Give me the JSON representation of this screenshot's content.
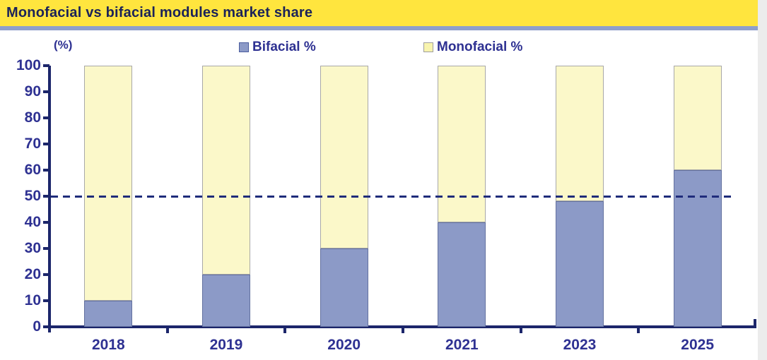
{
  "title": "Monofacial vs bifacial modules market share",
  "unit_label": "(%)",
  "legend": {
    "items": [
      {
        "label": "Bifacial %",
        "fill": "#8c9ac7",
        "border": "#4a5c9e"
      },
      {
        "label": "Monofacial %",
        "fill": "#f8f4ae",
        "border": "#9e9e9e"
      }
    ]
  },
  "chart_data": {
    "type": "bar",
    "stacked": true,
    "title": "Monofacial vs bifacial modules market share",
    "ylabel": "(%)",
    "categories": [
      "2018",
      "2019",
      "2020",
      "2021",
      "2023",
      "2025"
    ],
    "series": [
      {
        "name": "Bifacial %",
        "fill": "#8c9ac7",
        "border": "#63719f",
        "values": [
          10,
          20,
          30,
          40,
          48,
          60
        ]
      },
      {
        "name": "Monofacial %",
        "fill": "#fbf8c9",
        "border": "#a8a8a8",
        "values": [
          90,
          80,
          70,
          60,
          52,
          40
        ]
      }
    ],
    "ylim": [
      0,
      100
    ],
    "yticks": [
      0,
      10,
      20,
      30,
      40,
      50,
      60,
      70,
      80,
      90,
      100
    ],
    "grid": false,
    "legend_position": "top",
    "reference_line": {
      "value": 50,
      "style": "dashed",
      "color": "#1f2c7b"
    }
  },
  "colors": {
    "title_bg": "#ffe53e",
    "title_text": "#1b2259",
    "title_underline": "#8e9fcb",
    "axis": "#1c266b",
    "axis_text": "#2e3192"
  }
}
